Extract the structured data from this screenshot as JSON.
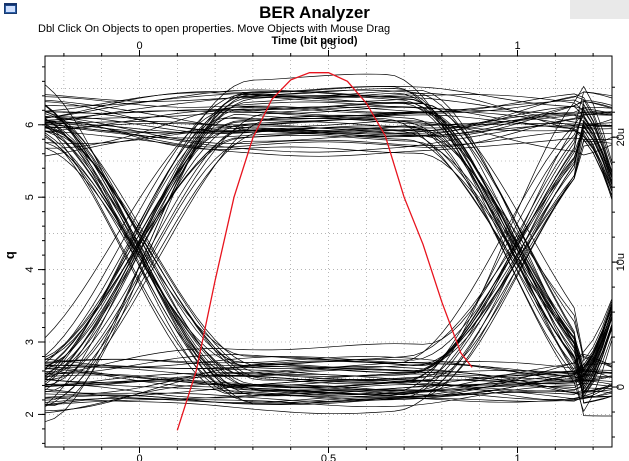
{
  "app": {
    "title": "BER Analyzer",
    "hint": "Dbl Click On Objects to open properties.  Move Objects with Mouse Drag"
  },
  "colors": {
    "trace": "#000000",
    "q_curve": "#e8141e",
    "frame": "#000000",
    "grid": "#888888"
  },
  "icons": {
    "app": "analyzer-window-icon"
  },
  "chart_data": {
    "type": "line",
    "title": "BER Analyzer",
    "x_top_label": "Time (bit period)",
    "ylabel": "q",
    "x_ticks": [
      "0",
      "0.5",
      "1"
    ],
    "x_ticks_bottom": [
      "0",
      "0.5",
      "1"
    ],
    "y_ticks": [
      "2",
      "3",
      "4",
      "5",
      "6"
    ],
    "y_right_ticks": [
      "0",
      "10u",
      "20u"
    ],
    "xlim": [
      -0.25,
      1.25
    ],
    "ylim": [
      1.55,
      6.95
    ],
    "y_right_lim": [
      -4.8e-06,
      2.65e-05
    ],
    "grid": true,
    "eye_diagram": {
      "trace_count": 110,
      "levels": {
        "high_mean_V": 2.15e-05,
        "low_mean_V": 4.5e-07
      },
      "crossing_bit_periods": [
        0,
        1
      ]
    },
    "series": [
      {
        "x": [
          0.1,
          0.15,
          0.2,
          0.25,
          0.3,
          0.35,
          0.4,
          0.45,
          0.5,
          0.55,
          0.6,
          0.65,
          0.7,
          0.75,
          0.8,
          0.85,
          0.88
        ],
        "y": [
          1.78,
          2.6,
          3.85,
          5.0,
          5.82,
          6.35,
          6.62,
          6.72,
          6.72,
          6.6,
          6.3,
          5.85,
          5.0,
          4.35,
          3.55,
          2.85,
          2.65
        ]
      }
    ]
  }
}
